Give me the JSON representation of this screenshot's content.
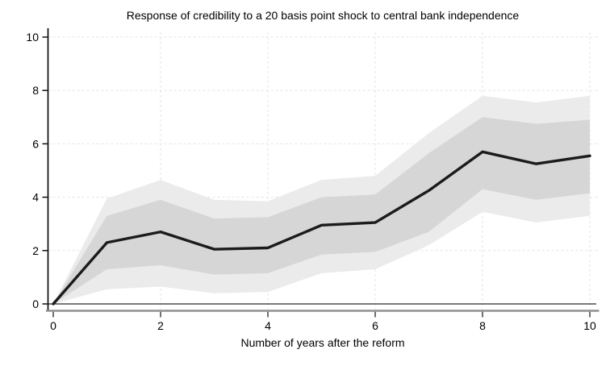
{
  "window": {
    "background": "#ffffff"
  },
  "chart_data": {
    "type": "line",
    "title": "Response of credibility to a 20 basis point shock to central bank independence",
    "xlabel": "Number of years after the reform",
    "ylabel": "",
    "x": [
      0,
      1,
      2,
      3,
      4,
      5,
      6,
      7,
      8,
      9,
      10
    ],
    "series": [
      {
        "name": "point-estimate",
        "role": "center-line",
        "values": [
          0,
          2.3,
          2.7,
          2.05,
          2.1,
          2.95,
          3.05,
          4.25,
          5.7,
          5.25,
          5.55
        ]
      },
      {
        "name": "inner-band-upper",
        "role": "band-edge",
        "values": [
          0,
          3.3,
          3.9,
          3.2,
          3.25,
          4.0,
          4.1,
          5.65,
          7.0,
          6.75,
          6.9
        ]
      },
      {
        "name": "inner-band-lower",
        "role": "band-edge",
        "values": [
          0,
          1.3,
          1.45,
          1.1,
          1.15,
          1.85,
          1.95,
          2.7,
          4.3,
          3.9,
          4.15
        ]
      },
      {
        "name": "outer-band-upper",
        "role": "band-edge",
        "values": [
          0,
          3.95,
          4.65,
          3.9,
          3.85,
          4.65,
          4.8,
          6.4,
          7.8,
          7.55,
          7.8
        ]
      },
      {
        "name": "outer-band-lower",
        "role": "band-edge",
        "values": [
          0,
          0.55,
          0.65,
          0.4,
          0.45,
          1.15,
          1.3,
          2.2,
          3.45,
          3.05,
          3.3
        ]
      }
    ],
    "xlim": [
      0,
      10
    ],
    "ylim": [
      0,
      10
    ],
    "xticks": {
      "values": [
        0,
        2,
        4,
        6,
        8,
        10
      ],
      "labels": [
        "0",
        "2",
        "4",
        "6",
        "8",
        "10"
      ]
    },
    "yticks": {
      "values": [
        0,
        2,
        4,
        6,
        8,
        10
      ],
      "labels": [
        "0",
        "2",
        "4",
        "6",
        "8",
        "10"
      ]
    },
    "grid": {
      "show": true,
      "style": "dashed",
      "on": "both"
    },
    "zero_line": true,
    "legend": {
      "show": false
    },
    "colors": {
      "line": "#1b1b1b",
      "inner_band": "#d6d6d6",
      "outer_band": "#ebebeb",
      "grid": "#e3e3e3",
      "zero_line": "#2a2a2a",
      "y_axis": "#000000",
      "x_axis": "#8f8f8f",
      "text": "#000000",
      "background": "#ffffff"
    }
  }
}
